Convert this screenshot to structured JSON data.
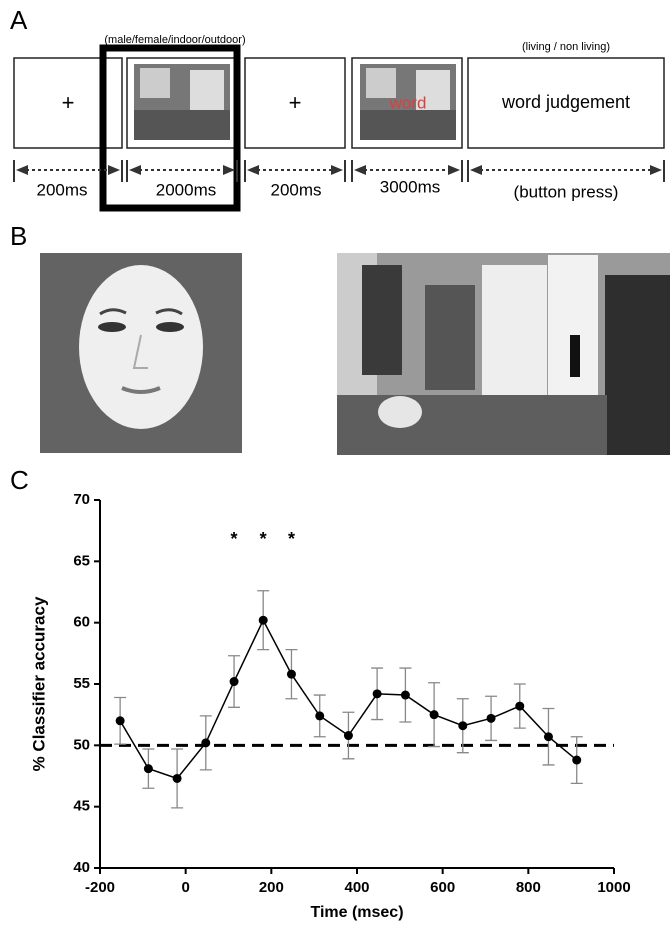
{
  "panel_a": {
    "label": "A",
    "task_labels": [
      "(male/female/indoor/outdoor)",
      "(living / non living)"
    ],
    "fixation": [
      "+",
      "+"
    ],
    "word": "word",
    "judgement": "word judgement",
    "durations": [
      "200ms",
      "2000ms",
      "200ms",
      "3000ms",
      "(button press)"
    ]
  },
  "panel_b": {
    "label": "B"
  },
  "panel_c_label": "C",
  "chart_data": {
    "type": "line",
    "xlabel": "Time (msec)",
    "ylabel": "% Classifier accuracy",
    "x": [
      -153,
      -87,
      -20,
      47,
      113,
      181,
      247,
      313,
      380,
      447,
      513,
      580,
      647,
      713,
      780,
      847,
      913
    ],
    "series": [
      {
        "color": "#000000",
        "values": [
          52,
          48.1,
          47.3,
          50.2,
          55.2,
          60.2,
          55.8,
          52.4,
          50.8,
          54.2,
          54.1,
          52.5,
          51.6,
          52.2,
          53.2,
          50.7,
          48.8
        ],
        "errors": [
          1.9,
          1.6,
          2.4,
          2.2,
          2.1,
          2.4,
          2.0,
          1.7,
          1.9,
          2.1,
          2.2,
          2.6,
          2.2,
          1.8,
          1.8,
          2.3,
          1.9
        ]
      }
    ],
    "reference_line": 50,
    "annotations": [
      {
        "text": "*",
        "x": 113
      },
      {
        "text": "*",
        "x": 181
      },
      {
        "text": "*",
        "x": 247
      }
    ],
    "xlim": [
      -200,
      1000
    ],
    "xticks": [
      -200,
      0,
      200,
      400,
      600,
      800,
      1000
    ],
    "ylim": [
      40,
      70
    ],
    "yticks": [
      40,
      45,
      50,
      55,
      60,
      65,
      70
    ]
  }
}
